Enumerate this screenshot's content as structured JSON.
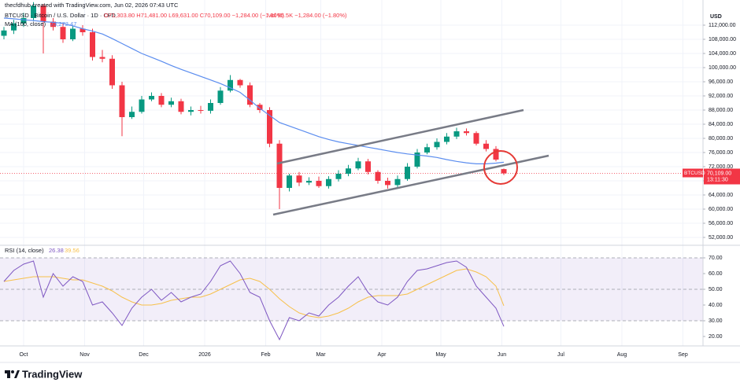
{
  "header": {
    "author": "thecfdhub created with TradingView.com, Jun 02, 2026 07:43 UTC",
    "symbol": "BTCUSD · Bitcoin / U.S. Dollar · 1D · CFD",
    "ohlc": "O71,303.80 H71,481.00 L69,631.00 C70,109.00 −1,284.00 (−1.80%)",
    "volume": "Vol 95.5K −1,284.00 (−1.80%)"
  },
  "chart_data": [
    {
      "type": "candlestick",
      "currency": "USD",
      "up_color": "#089981",
      "down_color": "#f23645",
      "x": [
        -10,
        -5,
        0,
        5,
        10,
        15,
        20,
        25,
        30,
        35,
        40,
        45,
        50,
        55,
        60,
        65,
        70,
        75,
        80,
        85,
        90,
        95,
        100,
        105,
        110,
        115,
        120,
        125,
        130,
        135,
        140,
        145,
        150,
        155,
        160,
        165,
        170,
        175,
        180,
        185,
        190,
        195,
        200,
        205,
        210,
        215,
        220,
        225,
        230,
        235,
        240,
        244
      ],
      "open": [
        109000,
        110500,
        112500,
        114000,
        117500,
        113000,
        111500,
        108000,
        111000,
        110000,
        103000,
        102500,
        95000,
        86000,
        87500,
        91000,
        92000,
        89500,
        90500,
        87500,
        88000,
        87800,
        90000,
        93500,
        96500,
        95000,
        89500,
        88000,
        78500,
        66000,
        69500,
        67500,
        68000,
        66500,
        68500,
        70000,
        71500,
        73500,
        70500,
        68000,
        66800,
        68500,
        72000,
        76000,
        77500,
        79000,
        80500,
        82000,
        81500,
        78500,
        77000,
        71303.8
      ],
      "high": [
        111500,
        113500,
        115500,
        118500,
        118000,
        114000,
        112500,
        111800,
        112000,
        111000,
        105000,
        103500,
        96000,
        89000,
        92000,
        93000,
        92800,
        91500,
        91200,
        89000,
        89200,
        91000,
        94500,
        97900,
        96800,
        95800,
        90000,
        88800,
        79500,
        70000,
        70500,
        69000,
        69200,
        69300,
        71000,
        72500,
        74500,
        74200,
        71000,
        68900,
        69500,
        73000,
        77000,
        78500,
        80000,
        81500,
        83000,
        82800,
        82000,
        79500,
        77800,
        71481
      ],
      "low": [
        108000,
        109500,
        111500,
        113200,
        104000,
        110500,
        107000,
        107500,
        109000,
        102000,
        101500,
        94000,
        80600,
        85500,
        87000,
        90500,
        88800,
        88800,
        86800,
        86500,
        87000,
        87000,
        89500,
        93000,
        94300,
        88800,
        87200,
        77500,
        60000,
        65000,
        66500,
        66800,
        66000,
        65800,
        67800,
        69300,
        71000,
        69800,
        67200,
        65800,
        66200,
        68000,
        71500,
        75500,
        76800,
        78300,
        79800,
        80800,
        78000,
        76300,
        73500,
        69631
      ],
      "close": [
        110500,
        112500,
        114000,
        117500,
        113000,
        111500,
        108000,
        111000,
        110000,
        103000,
        102500,
        95000,
        86000,
        87500,
        91000,
        92000,
        89500,
        90500,
        87500,
        88000,
        87800,
        90000,
        93500,
        96500,
        95000,
        89500,
        88000,
        78500,
        66000,
        69500,
        67500,
        68000,
        66500,
        68500,
        70000,
        71500,
        73500,
        70500,
        68000,
        66800,
        68500,
        72000,
        76000,
        77500,
        79000,
        80500,
        82000,
        81500,
        78500,
        77000,
        74000,
        70109
      ],
      "ma": {
        "name": "MA (100, close)",
        "last_label": "73,272.47",
        "color": "#5b8def",
        "values": [
          114000,
          113800,
          113500,
          113300,
          113000,
          112800,
          112500,
          111800,
          111000,
          110300,
          109500,
          108200,
          106800,
          105400,
          104000,
          102900,
          101800,
          100600,
          99500,
          98500,
          97500,
          96500,
          95500,
          94300,
          93000,
          90800,
          88500,
          86500,
          84500,
          83500,
          82500,
          81500,
          80500,
          79700,
          79000,
          78500,
          78000,
          77500,
          77000,
          76500,
          76000,
          75600,
          75300,
          75000,
          74600,
          74000,
          73500,
          73100,
          72800,
          72800,
          73000,
          73272.47
        ]
      },
      "last_price": {
        "symbol": "BTCUSD",
        "price": "70,109.00",
        "countdown": "13:11:30"
      },
      "xlim": [
        -12,
        345.2
      ],
      "ylim": [
        49778,
        119111
      ],
      "yticks": [
        {
          "value": 52000,
          "label": "52,000.00"
        },
        {
          "value": 56000,
          "label": "56,000.00"
        },
        {
          "value": 60000,
          "label": "60,000.00"
        },
        {
          "value": 64000,
          "label": "64,000.00"
        },
        {
          "value": 68000,
          "label": "68,000.00"
        },
        {
          "value": 72000,
          "label": "72,000.00"
        },
        {
          "value": 76000,
          "label": "76,000.00"
        },
        {
          "value": 80000,
          "label": "80,000.00"
        },
        {
          "value": 84000,
          "label": "84,000.00"
        },
        {
          "value": 88000,
          "label": "88,000.00"
        },
        {
          "value": 92000,
          "label": "92,000.00"
        },
        {
          "value": 96000,
          "label": "96,000.00"
        },
        {
          "value": 100000,
          "label": "100,000.00"
        },
        {
          "value": 104000,
          "label": "104,000.00"
        },
        {
          "value": 108000,
          "label": "108,000.00"
        },
        {
          "value": 112000,
          "label": "112,000.00"
        }
      ],
      "xticks": [
        {
          "value": 0,
          "label": "Oct"
        },
        {
          "value": 31,
          "label": "Nov"
        },
        {
          "value": 61,
          "label": "Dec"
        },
        {
          "value": 92,
          "label": "2026"
        },
        {
          "value": 123,
          "label": "Feb"
        },
        {
          "value": 151,
          "label": "Mar"
        },
        {
          "value": 182,
          "label": "Apr"
        },
        {
          "value": 212,
          "label": "May"
        },
        {
          "value": 243,
          "label": "Jun"
        },
        {
          "value": 273,
          "label": "Jul"
        },
        {
          "value": 304,
          "label": "Aug"
        },
        {
          "value": 335,
          "label": "Sep"
        }
      ],
      "grid": true
    },
    {
      "type": "line",
      "title": "RSI (14, close)",
      "x": [
        -10,
        -5,
        0,
        5,
        10,
        15,
        20,
        25,
        30,
        35,
        40,
        45,
        50,
        55,
        60,
        65,
        70,
        75,
        80,
        85,
        90,
        95,
        100,
        105,
        110,
        115,
        120,
        125,
        130,
        135,
        140,
        145,
        150,
        155,
        160,
        165,
        170,
        175,
        180,
        185,
        190,
        195,
        200,
        205,
        210,
        215,
        220,
        225,
        230,
        235,
        240,
        244
      ],
      "series": [
        {
          "color": "#7e57c2",
          "last_label": "26.38",
          "values": [
            55,
            62,
            66,
            68,
            45,
            60,
            52,
            58,
            55,
            40,
            42,
            35,
            27,
            38,
            45,
            50,
            43,
            48,
            42,
            45,
            47,
            55,
            65,
            68,
            60,
            48,
            45,
            30,
            18,
            32,
            30,
            35,
            33,
            40,
            45,
            52,
            58,
            48,
            42,
            40,
            45,
            55,
            62,
            63,
            65,
            67,
            68,
            64,
            52,
            45,
            38,
            26.38
          ]
        },
        {
          "color": "#f7c04a",
          "last_label": "39.56",
          "values": [
            55,
            56,
            57,
            58,
            58,
            58,
            57,
            56,
            56,
            54,
            52,
            49,
            45,
            42,
            40,
            40,
            41,
            43,
            44,
            45,
            45,
            47,
            50,
            53,
            56,
            57,
            55,
            50,
            44,
            39,
            35,
            33,
            32,
            33,
            35,
            38,
            42,
            45,
            46,
            46,
            46,
            47,
            50,
            53,
            56,
            59,
            62,
            63,
            61,
            58,
            52,
            39.56
          ]
        }
      ],
      "levels": [
        30,
        50,
        70
      ],
      "band": [
        30,
        70
      ],
      "band_color": "#7e57c2",
      "xlim": [
        -12,
        345.2
      ],
      "ylim": [
        14,
        78
      ],
      "yticks": [
        {
          "value": 20,
          "label": "20.00"
        },
        {
          "value": 30,
          "label": "30.00"
        },
        {
          "value": 40,
          "label": "40.00"
        },
        {
          "value": 50,
          "label": "50.00"
        },
        {
          "value": 60,
          "label": "60.00"
        },
        {
          "value": 70,
          "label": "70.00"
        }
      ]
    }
  ],
  "footer": {
    "brand": "TradingView"
  }
}
